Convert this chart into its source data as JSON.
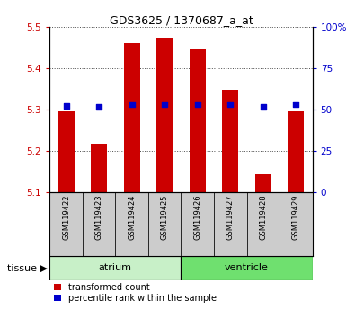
{
  "title": "GDS3625 / 1370687_a_at",
  "samples": [
    "GSM119422",
    "GSM119423",
    "GSM119424",
    "GSM119425",
    "GSM119426",
    "GSM119427",
    "GSM119428",
    "GSM119429"
  ],
  "transformed_count": [
    5.295,
    5.218,
    5.462,
    5.474,
    5.448,
    5.348,
    5.143,
    5.295
  ],
  "percentile_rank": [
    52.0,
    51.5,
    53.5,
    53.5,
    53.5,
    53.5,
    51.5,
    53.5
  ],
  "ylim_left": [
    5.1,
    5.5
  ],
  "ylim_right": [
    0,
    100
  ],
  "yticks_left": [
    5.1,
    5.2,
    5.3,
    5.4,
    5.5
  ],
  "yticks_right": [
    0,
    25,
    50,
    75,
    100
  ],
  "baseline": 5.1,
  "tissues": [
    {
      "label": "atrium",
      "start": 0,
      "end": 3,
      "color": "#c8f0c8"
    },
    {
      "label": "ventricle",
      "start": 4,
      "end": 7,
      "color": "#6fe06f"
    }
  ],
  "bar_color": "#cc0000",
  "dot_color": "#0000cc",
  "bar_width": 0.5,
  "dot_size": 18,
  "grid_style": "dotted",
  "grid_color": "#000000",
  "grid_alpha": 0.7,
  "left_label_color": "#cc0000",
  "right_label_color": "#0000cc",
  "legend_red_label": "transformed count",
  "legend_blue_label": "percentile rank within the sample",
  "tissue_row_label": "tissue",
  "background_color": "#ffffff",
  "sample_bg_color": "#cccccc"
}
